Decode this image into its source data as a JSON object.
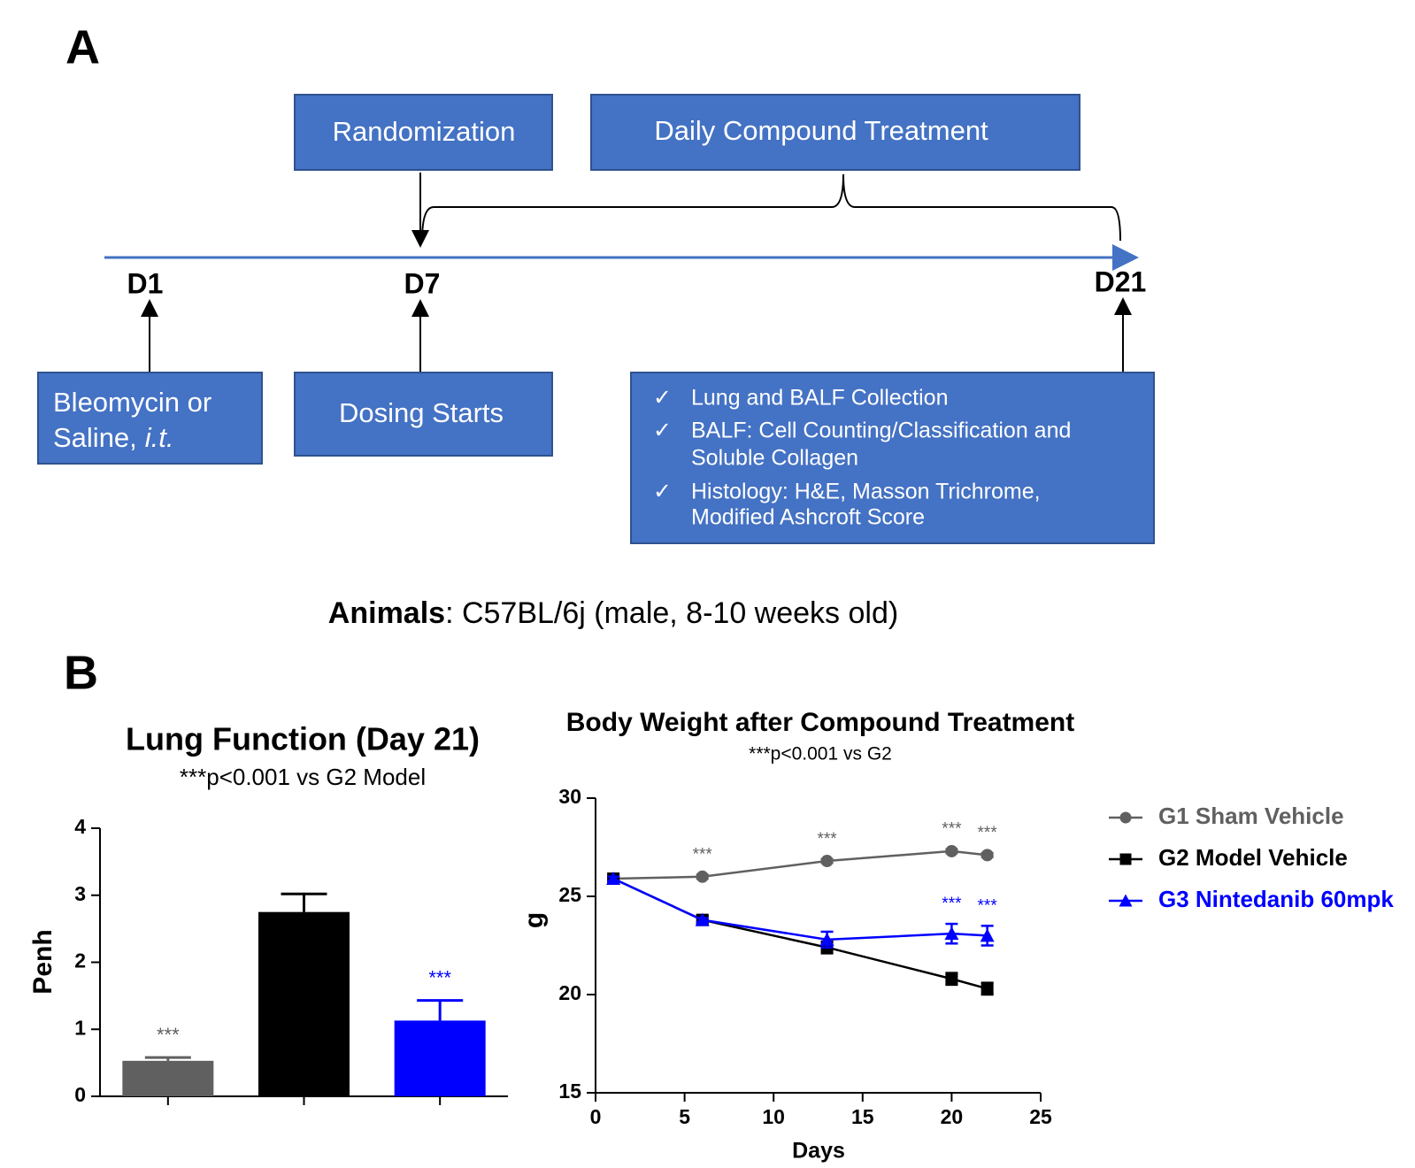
{
  "panel_a": {
    "label": "A",
    "top_boxes": [
      "Randomization",
      "Daily Compound Treatment"
    ],
    "days": [
      "D1",
      "D7",
      "D21"
    ],
    "start_box": {
      "line1": "Bleomycin or",
      "line2": "Saline,",
      "italic": "i.t."
    },
    "dosing_box": "Dosing Starts",
    "check": "✓",
    "checklist": [
      [
        "Lung and BALF Collection"
      ],
      [
        "BALF: Cell Counting/Classification and",
        "Soluble Collagen"
      ],
      [
        "Histology: H&E, Masson Trichrome,",
        "Modified Ashcroft Score"
      ]
    ],
    "animals": {
      "label": "Animals",
      "text": ": C57BL/6j (male, 8-10 weeks old)"
    }
  },
  "panel_b_label": "B",
  "chart_data": [
    {
      "type": "bar",
      "title": "Lung Function (Day 21)",
      "subtitle": "***p<0.001 vs G2 Model",
      "y_label": "Penh",
      "categories": [
        null,
        null,
        null
      ],
      "values": [
        0.53,
        2.75,
        1.13
      ],
      "errors": [
        0.05,
        0.27,
        0.3
      ],
      "colors": [
        "#606060",
        "#000000",
        "#0000ff"
      ],
      "annotations": [
        "***",
        null,
        "***"
      ],
      "ylim": [
        0,
        4
      ],
      "yticks": [
        0,
        1,
        2,
        3,
        4
      ]
    },
    {
      "type": "line",
      "title": "Body Weight after Compound Treatment",
      "subtitle": "***p<0.001  vs G2",
      "x_label": "Days",
      "y_label": "g",
      "x": [
        1,
        6,
        13,
        20,
        22
      ],
      "series": [
        {
          "name": "G1 Sham Vehicle",
          "color": "#606060",
          "marker": "circle",
          "values": [
            25.9,
            26.0,
            26.8,
            27.3,
            27.1
          ],
          "errors": [
            0.1,
            0.1,
            0.1,
            0.1,
            0.1
          ],
          "annotations": [
            null,
            "***",
            "***",
            "***",
            "***"
          ]
        },
        {
          "name": "G2 Model Vehicle",
          "color": "#000000",
          "marker": "square",
          "values": [
            25.9,
            23.8,
            22.4,
            20.8,
            20.3
          ],
          "errors": [
            0.1,
            0.2,
            0.3,
            0.3,
            0.3
          ],
          "annotations": [
            null,
            null,
            null,
            null,
            null
          ]
        },
        {
          "name": "G3 Nintedanib 60mpk",
          "color": "#0000ff",
          "marker": "triangle",
          "values": [
            25.9,
            23.8,
            22.8,
            23.1,
            23.0
          ],
          "errors": [
            0.1,
            0.1,
            0.4,
            0.5,
            0.5
          ],
          "annotations": [
            null,
            null,
            null,
            "***",
            "***"
          ]
        }
      ],
      "xlim": [
        0,
        25
      ],
      "xticks": [
        0,
        5,
        10,
        15,
        20,
        25
      ],
      "ylim": [
        15,
        30
      ],
      "yticks": [
        15,
        20,
        25,
        30
      ]
    }
  ]
}
